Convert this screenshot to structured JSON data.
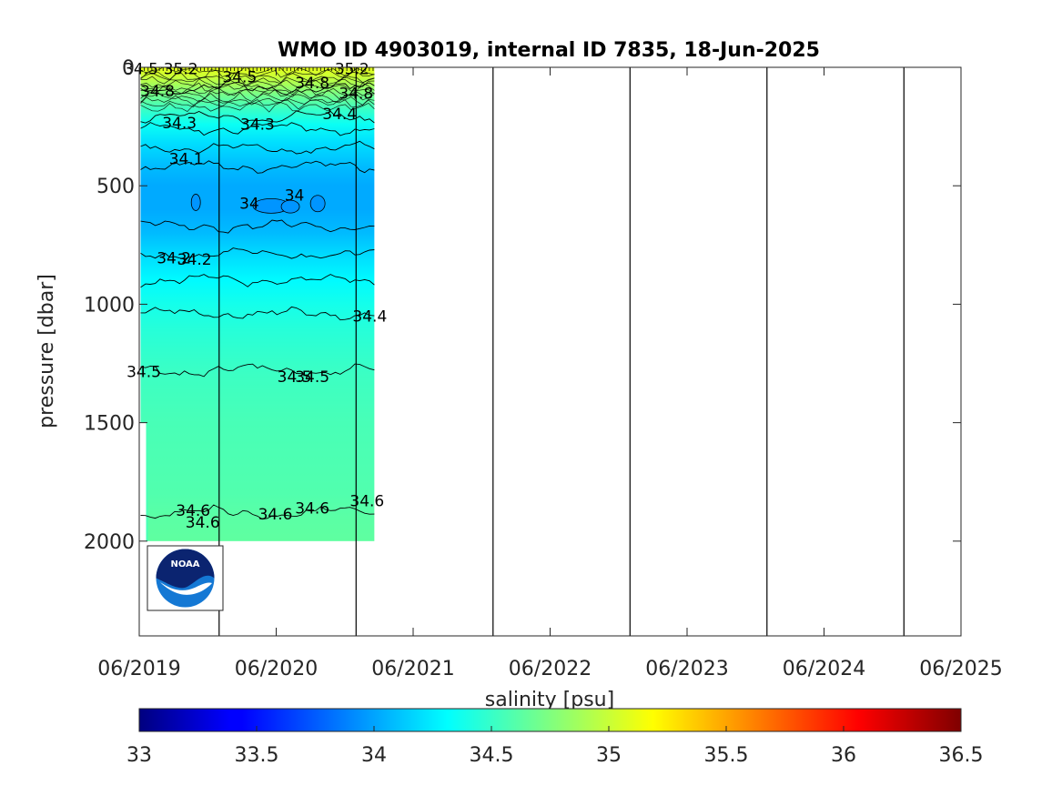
{
  "chart_data": {
    "type": "heatmap",
    "title": "WMO ID 4903019, internal ID 7835, 18-Jun-2025",
    "ylabel": "pressure [dbar]",
    "colorbar_label": "salinity [psu]",
    "x_range": [
      "06/2019",
      "06/2025"
    ],
    "x_ticks": [
      "06/2019",
      "06/2020",
      "06/2021",
      "06/2022",
      "06/2023",
      "06/2024",
      "06/2025"
    ],
    "y_range": [
      0,
      2400
    ],
    "y_reversed": true,
    "y_ticks": [
      0,
      500,
      1000,
      1500,
      2000
    ],
    "y_tick_labels": [
      "0",
      "500",
      "1000",
      "1500",
      "2000"
    ],
    "colorbar_range": [
      33,
      36.5
    ],
    "colorbar_ticks": [
      33,
      33.5,
      34,
      34.5,
      35,
      35.5,
      36,
      36.5
    ],
    "colorbar_tick_labels": [
      "33",
      "33.5",
      "34",
      "34.5",
      "35",
      "35.5",
      "36",
      "36.5"
    ],
    "colormap": "jet",
    "data_period": [
      "06/2019",
      "02/2021"
    ],
    "data_max_pressure": 2000,
    "year_boundaries": [
      "01/2020",
      "01/2021",
      "01/2022",
      "01/2023",
      "01/2024",
      "01/2025"
    ],
    "salinity_profile": [
      {
        "pressure": 0,
        "salinity": 35.1
      },
      {
        "pressure": 40,
        "salinity": 35.0
      },
      {
        "pressure": 80,
        "salinity": 34.85
      },
      {
        "pressure": 120,
        "salinity": 34.7
      },
      {
        "pressure": 180,
        "salinity": 34.5
      },
      {
        "pressure": 240,
        "salinity": 34.35
      },
      {
        "pressure": 320,
        "salinity": 34.2
      },
      {
        "pressure": 420,
        "salinity": 34.08
      },
      {
        "pressure": 500,
        "salinity": 34.02
      },
      {
        "pressure": 600,
        "salinity": 34.02
      },
      {
        "pressure": 700,
        "salinity": 34.08
      },
      {
        "pressure": 800,
        "salinity": 34.2
      },
      {
        "pressure": 900,
        "salinity": 34.3
      },
      {
        "pressure": 1000,
        "salinity": 34.38
      },
      {
        "pressure": 1100,
        "salinity": 34.44
      },
      {
        "pressure": 1200,
        "salinity": 34.48
      },
      {
        "pressure": 1300,
        "salinity": 34.52
      },
      {
        "pressure": 1500,
        "salinity": 34.56
      },
      {
        "pressure": 1800,
        "salinity": 34.59
      },
      {
        "pressure": 1900,
        "salinity": 34.62
      },
      {
        "pressure": 2000,
        "salinity": 34.64
      }
    ],
    "contours": [
      {
        "value": "34.8",
        "depth": 90
      },
      {
        "value": "34.4",
        "depth": 210
      },
      {
        "value": "34.3",
        "depth": 260
      },
      {
        "value": "34.2",
        "depth": 340
      },
      {
        "value": "34.1",
        "depth": 420
      },
      {
        "value": "34.1",
        "depth": 670
      },
      {
        "value": "34.2",
        "depth": 790
      },
      {
        "value": "34.3",
        "depth": 900
      },
      {
        "value": "34.4",
        "depth": 1040
      },
      {
        "value": "34.5",
        "depth": 1280
      },
      {
        "value": "34.6",
        "depth": 1880
      }
    ],
    "annotations": [
      {
        "text": "34.5",
        "time": 2019.43,
        "depth": 5
      },
      {
        "text": "35.2",
        "time": 2019.72,
        "depth": 5
      },
      {
        "text": "34.5",
        "time": 2020.15,
        "depth": 40
      },
      {
        "text": "35.2",
        "time": 2020.97,
        "depth": 5
      },
      {
        "text": "34.8",
        "time": 2019.55,
        "depth": 100
      },
      {
        "text": "34.8",
        "time": 2020.68,
        "depth": 65
      },
      {
        "text": "34.8",
        "time": 2021.0,
        "depth": 110
      },
      {
        "text": "34.3",
        "time": 2019.71,
        "depth": 235
      },
      {
        "text": "34.3",
        "time": 2020.28,
        "depth": 240
      },
      {
        "text": "34.4",
        "time": 2020.88,
        "depth": 195
      },
      {
        "text": "34.1",
        "time": 2019.76,
        "depth": 385
      },
      {
        "text": "34",
        "time": 2020.22,
        "depth": 575
      },
      {
        "text": "34",
        "time": 2020.55,
        "depth": 540
      },
      {
        "text": "34.2",
        "time": 2019.67,
        "depth": 805
      },
      {
        "text": "34.2",
        "time": 2019.82,
        "depth": 810
      },
      {
        "text": "34.4",
        "time": 2021.1,
        "depth": 1050
      },
      {
        "text": "34.5",
        "time": 2019.45,
        "depth": 1285
      },
      {
        "text": "34.5",
        "time": 2020.55,
        "depth": 1305
      },
      {
        "text": "34.5",
        "time": 2020.68,
        "depth": 1305
      },
      {
        "text": "34.6",
        "time": 2019.81,
        "depth": 1870
      },
      {
        "text": "34.6",
        "time": 2019.88,
        "depth": 1920
      },
      {
        "text": "34.6",
        "time": 2020.41,
        "depth": 1885
      },
      {
        "text": "34.6",
        "time": 2020.68,
        "depth": 1860
      },
      {
        "text": "34.6",
        "time": 2021.08,
        "depth": 1830
      }
    ],
    "grid": false,
    "logo": "noaa-logo"
  }
}
